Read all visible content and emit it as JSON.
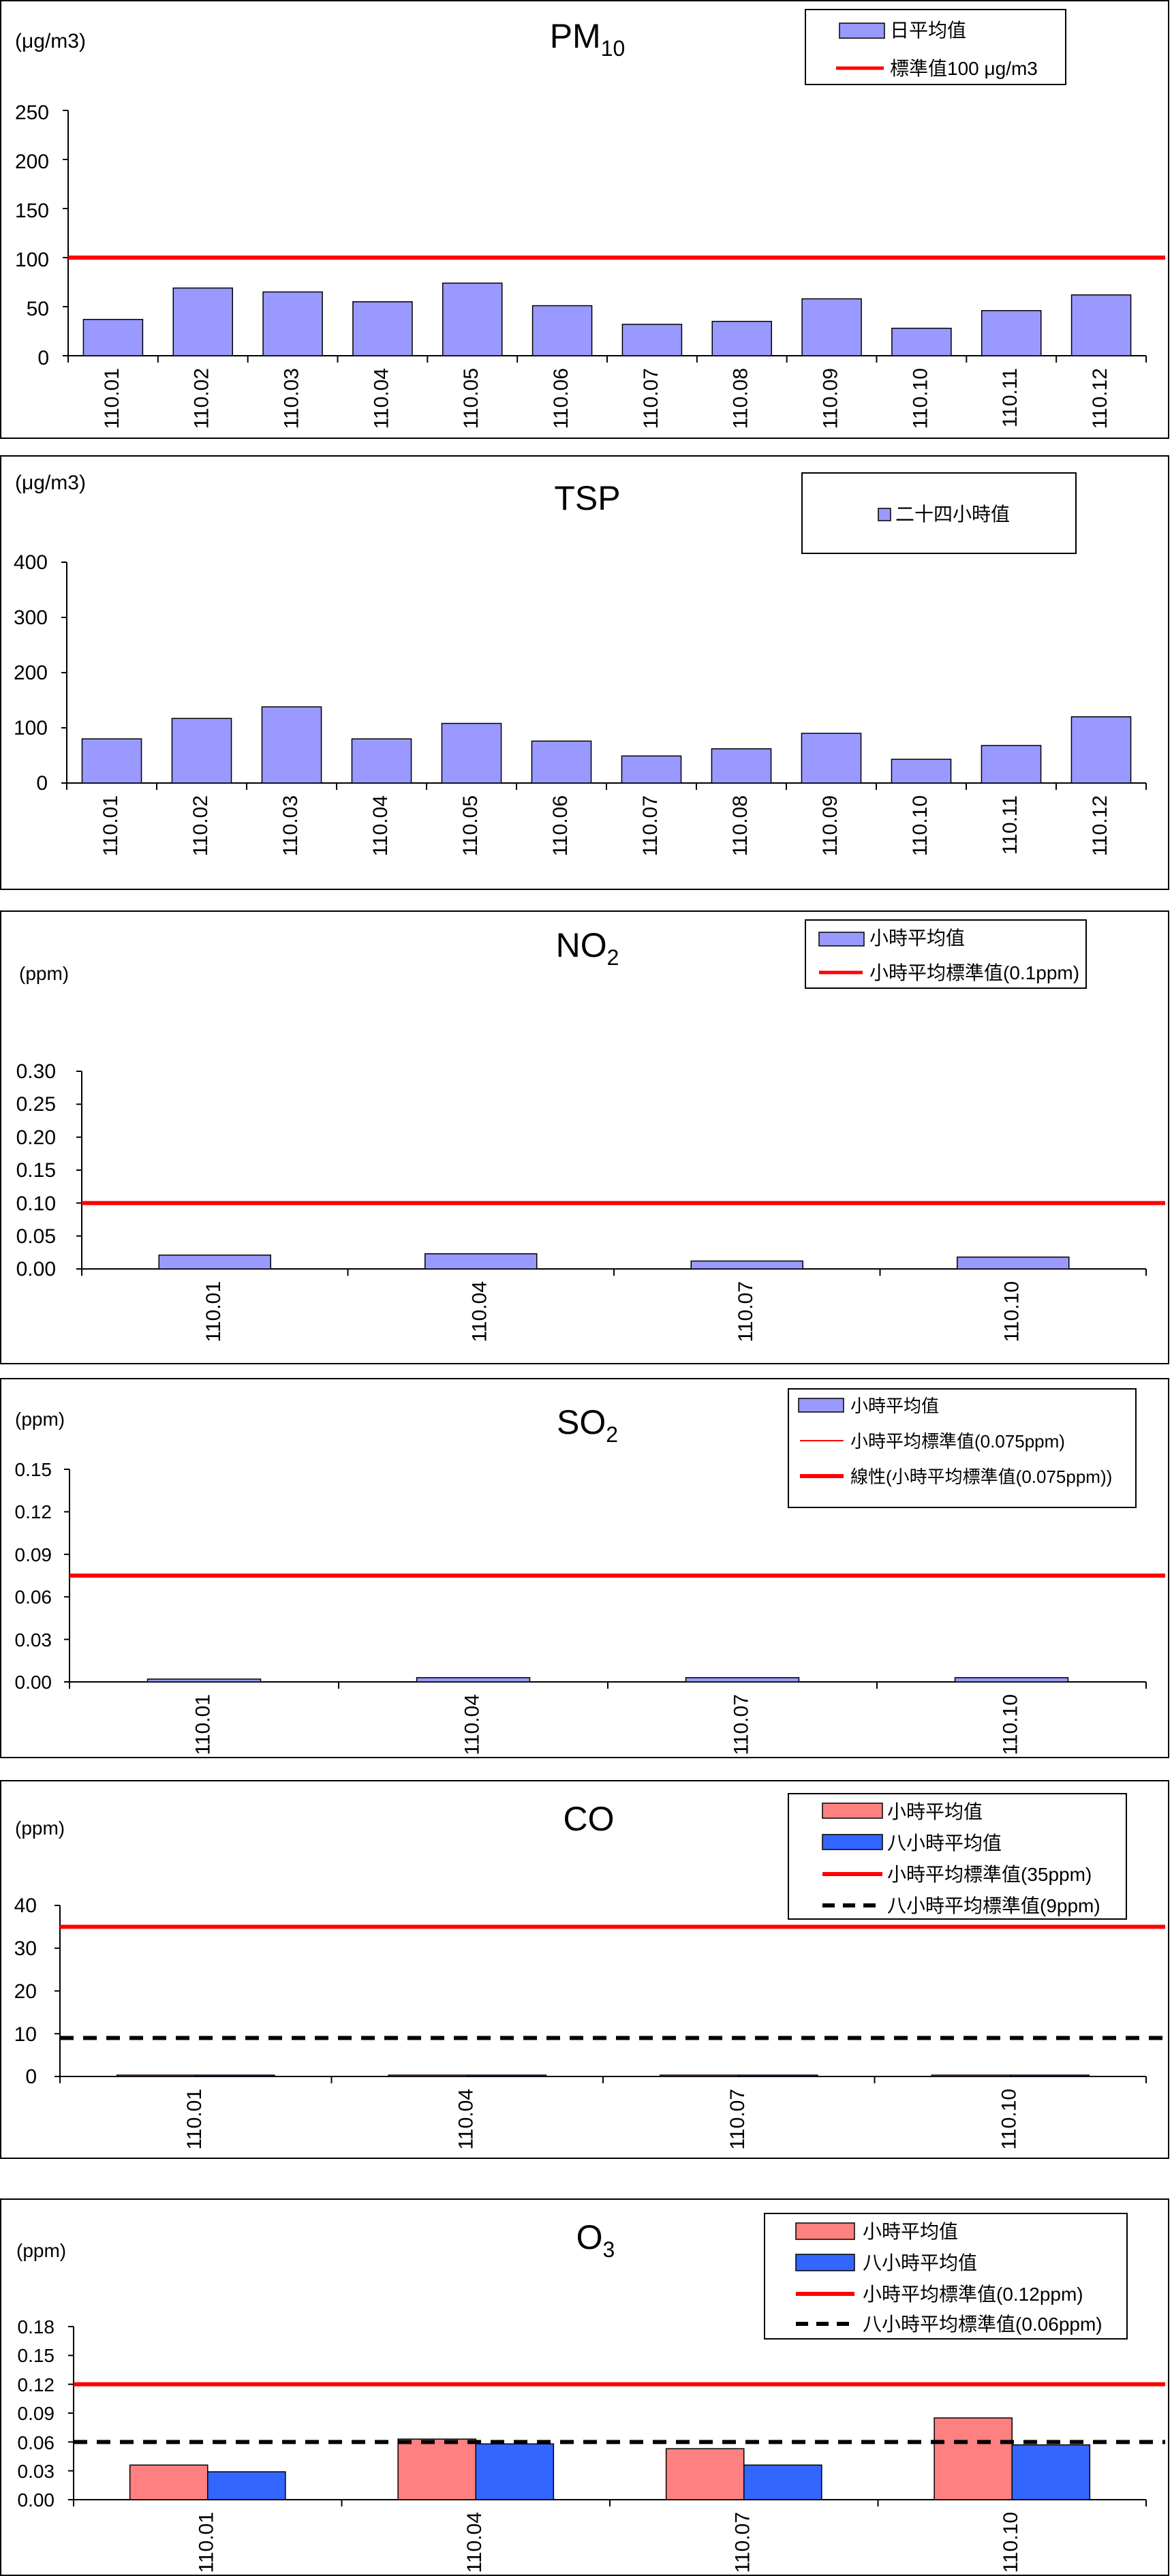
{
  "colors": {
    "bar": "#9999FF",
    "bar_red": "#FF8080",
    "bar_blue": "#3366FF",
    "std_line": "#FF0000",
    "std_dash": "#000000"
  },
  "chart_data": [
    {
      "type": "bar",
      "title": "PM10",
      "title_main": "PM",
      "title_sub": "10",
      "unit_label": "(μg/m3)",
      "categories": [
        "110.01",
        "110.02",
        "110.03",
        "110.04",
        "110.05",
        "110.06",
        "110.07",
        "110.08",
        "110.09",
        "110.10",
        "110.11",
        "110.12"
      ],
      "series": [
        {
          "name": "日平均值",
          "values": [
            37,
            69,
            65,
            55,
            74,
            51,
            32,
            35,
            58,
            28,
            46,
            62
          ]
        }
      ],
      "ylim": [
        0,
        250
      ],
      "yticks": [
        "250",
        "200",
        "150",
        "100",
        "50",
        "0"
      ],
      "standards": [
        {
          "name": "標準值100 μg/m3",
          "value": 100,
          "style": "solid"
        }
      ]
    },
    {
      "type": "bar",
      "title": "TSP",
      "unit_label": "(μg/m3)",
      "categories": [
        "110.01",
        "110.02",
        "110.03",
        "110.04",
        "110.05",
        "110.06",
        "110.07",
        "110.08",
        "110.09",
        "110.10",
        "110.11",
        "110.12"
      ],
      "series": [
        {
          "name": "二十四小時值",
          "values": [
            80,
            117,
            138,
            80,
            108,
            76,
            49,
            62,
            90,
            43,
            68,
            120
          ]
        }
      ],
      "ylim": [
        0,
        400
      ],
      "yticks": [
        "400",
        "300",
        "200",
        "100",
        "0"
      ],
      "standards": []
    },
    {
      "type": "bar",
      "title": "NO2",
      "title_main": "NO",
      "title_sub": "2",
      "unit_label": "(ppm)",
      "categories": [
        "110.01",
        "110.04",
        "110.07",
        "110.10"
      ],
      "series": [
        {
          "name": "小時平均值",
          "values": [
            0.021,
            0.023,
            0.012,
            0.018
          ]
        }
      ],
      "ylim": [
        0,
        0.3
      ],
      "yticks": [
        "0.30",
        "0.25",
        "0.20",
        "0.15",
        "0.10",
        "0.05",
        "0.00"
      ],
      "standards": [
        {
          "name": "小時平均標準值(0.1ppm)",
          "value": 0.1,
          "style": "solid"
        }
      ]
    },
    {
      "type": "bar",
      "title": "SO2",
      "title_main": "SO",
      "title_sub": "2",
      "unit_label": "(ppm)",
      "categories": [
        "110.01",
        "110.04",
        "110.07",
        "110.10"
      ],
      "series": [
        {
          "name": "小時平均值",
          "values": [
            0.002,
            0.003,
            0.003,
            0.003
          ]
        }
      ],
      "ylim": [
        0,
        0.15
      ],
      "yticks": [
        "0.15",
        "0.12",
        "0.09",
        "0.06",
        "0.03",
        "0.00"
      ],
      "standards": [
        {
          "name": "小時平均標準值(0.075ppm)",
          "value": 0.075,
          "style": "thin"
        },
        {
          "name": "線性(小時平均標準值(0.075ppm))",
          "value": 0.075,
          "style": "solid"
        }
      ]
    },
    {
      "type": "bar",
      "title": "CO",
      "unit_label": "(ppm)",
      "categories": [
        "110.01",
        "110.04",
        "110.07",
        "110.10"
      ],
      "series": [
        {
          "name": "小時平均值",
          "values": [
            0.3,
            0.3,
            0.3,
            0.3
          ]
        },
        {
          "name": "八小時平均值",
          "values": [
            0.2,
            0.2,
            0.2,
            0.2
          ]
        }
      ],
      "ylim": [
        0,
        40
      ],
      "yticks": [
        "40",
        "30",
        "20",
        "10",
        "0"
      ],
      "standards": [
        {
          "name": "小時平均標準值(35ppm)",
          "value": 35,
          "style": "solid"
        },
        {
          "name": "八小時平均標準值(9ppm)",
          "value": 9,
          "style": "dash"
        }
      ]
    },
    {
      "type": "bar",
      "title": "O3",
      "title_main": "O",
      "title_sub": "3",
      "unit_label": "(ppm)",
      "categories": [
        "110.01",
        "110.04",
        "110.07",
        "110.10"
      ],
      "series": [
        {
          "name": "小時平均值",
          "values": [
            0.036,
            0.063,
            0.053,
            0.085
          ]
        },
        {
          "name": "八小時平均值",
          "values": [
            0.029,
            0.058,
            0.036,
            0.057
          ]
        }
      ],
      "ylim": [
        0,
        0.18
      ],
      "yticks": [
        "0.18",
        "0.15",
        "0.12",
        "0.09",
        "0.06",
        "0.03",
        "0.00"
      ],
      "standards": [
        {
          "name": "小時平均標準值(0.12ppm)",
          "value": 0.12,
          "style": "solid"
        },
        {
          "name": "八小時平均標準值(0.06ppm)",
          "value": 0.06,
          "style": "dash"
        }
      ]
    }
  ]
}
